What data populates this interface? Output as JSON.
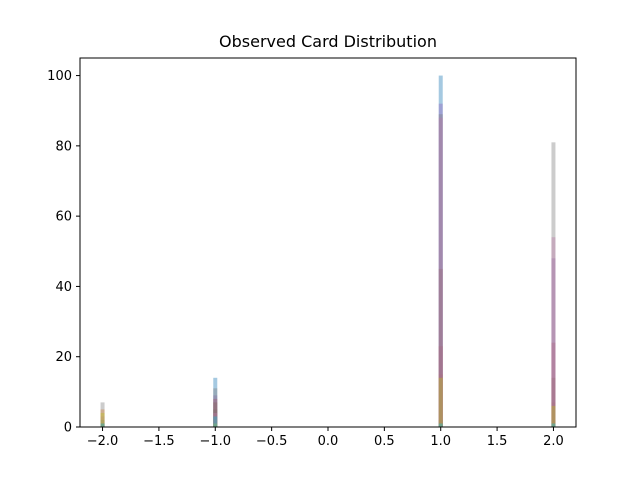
{
  "chart_data": {
    "type": "bar",
    "title": "Observed Card Distribution",
    "xlabel": "",
    "ylabel": "",
    "xlim": [
      -2.2,
      2.2
    ],
    "ylim": [
      0,
      105
    ],
    "grid": false,
    "legend": "none",
    "xticks": [
      -2.0,
      -1.5,
      -1.0,
      -0.5,
      0.0,
      0.5,
      1.0,
      1.5,
      2.0
    ],
    "xtick_labels": [
      "−2.0",
      "−1.5",
      "−1.0",
      "−0.5",
      "0.0",
      "0.5",
      "1.0",
      "1.5",
      "2.0"
    ],
    "yticks": [
      0,
      20,
      40,
      60,
      80,
      100
    ],
    "ytick_labels": [
      "0",
      "20",
      "40",
      "60",
      "80",
      "100"
    ],
    "alpha": 0.4,
    "series": [
      {
        "color": "#1f77b4",
        "values": [
          {
            "x": -2.0,
            "y": 0
          },
          {
            "x": -1.0,
            "y": 14
          },
          {
            "x": 1.0,
            "y": 100
          },
          {
            "x": 2.0,
            "y": 0
          }
        ]
      },
      {
        "color": "#ff7f0e",
        "values": [
          {
            "x": -2.0,
            "y": 5
          },
          {
            "x": -1.0,
            "y": 2
          },
          {
            "x": 1.0,
            "y": 15
          },
          {
            "x": 2.0,
            "y": 7
          }
        ]
      },
      {
        "color": "#2ca02c",
        "values": [
          {
            "x": -2.0,
            "y": 2
          },
          {
            "x": -1.0,
            "y": 5
          },
          {
            "x": 1.0,
            "y": 2
          },
          {
            "x": 2.0,
            "y": 2
          }
        ]
      },
      {
        "color": "#d62728",
        "values": [
          {
            "x": -2.0,
            "y": 1
          },
          {
            "x": -1.0,
            "y": 8
          },
          {
            "x": 1.0,
            "y": 23
          },
          {
            "x": 2.0,
            "y": 24
          }
        ]
      },
      {
        "color": "#9467bd",
        "values": [
          {
            "x": -2.0,
            "y": 0
          },
          {
            "x": -1.0,
            "y": 9
          },
          {
            "x": 1.0,
            "y": 92
          },
          {
            "x": 2.0,
            "y": 48
          }
        ]
      },
      {
        "color": "#8c564b",
        "values": [
          {
            "x": -2.0,
            "y": 1
          },
          {
            "x": -1.0,
            "y": 7
          },
          {
            "x": 1.0,
            "y": 45
          },
          {
            "x": 2.0,
            "y": 14
          }
        ]
      },
      {
        "color": "#e377c2",
        "values": [
          {
            "x": -2.0,
            "y": 3
          },
          {
            "x": -1.0,
            "y": 4
          },
          {
            "x": 1.0,
            "y": 88
          },
          {
            "x": 2.0,
            "y": 54
          }
        ]
      },
      {
        "color": "#7f7f7f",
        "values": [
          {
            "x": -2.0,
            "y": 7
          },
          {
            "x": -1.0,
            "y": 11
          },
          {
            "x": 1.0,
            "y": 89
          },
          {
            "x": 2.0,
            "y": 81
          }
        ]
      },
      {
        "color": "#bcbd22",
        "values": [
          {
            "x": -2.0,
            "y": 4
          },
          {
            "x": -1.0,
            "y": 1
          },
          {
            "x": 1.0,
            "y": 14
          },
          {
            "x": 2.0,
            "y": 6
          }
        ]
      },
      {
        "color": "#17becf",
        "values": [
          {
            "x": -2.0,
            "y": 1
          },
          {
            "x": -1.0,
            "y": 3
          },
          {
            "x": 1.0,
            "y": 1
          },
          {
            "x": 2.0,
            "y": 1
          }
        ]
      }
    ]
  }
}
